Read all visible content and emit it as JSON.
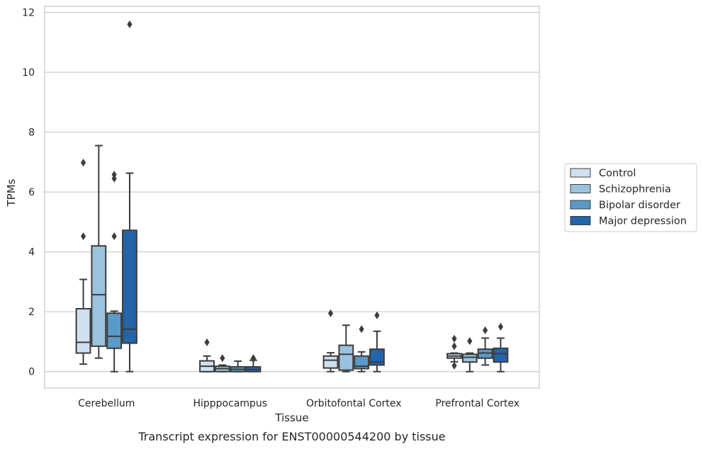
{
  "caption": "Transcript expression for ENST00000544200 by tissue",
  "chart_data": {
    "type": "box",
    "xlabel": "Tissue",
    "ylabel": "TPMs",
    "ylim": [
      -0.55,
      12.2
    ],
    "yticks": [
      0,
      2,
      4,
      6,
      8,
      10,
      12
    ],
    "grid": "horizontal",
    "legend_position": "right",
    "categories": [
      "Cerebellum",
      "Hipppocampus",
      "Orbitofontal Cortex",
      "Prefrontal Cortex"
    ],
    "series": [
      {
        "name": "Control",
        "color": "#cfe0f0",
        "boxes": [
          {
            "q1": 0.62,
            "median": 0.98,
            "q3": 2.1,
            "whisker_low": 0.25,
            "whisker_high": 3.08,
            "outliers": [
              4.52,
              6.98
            ]
          },
          {
            "q1": 0.0,
            "median": 0.18,
            "q3": 0.36,
            "whisker_low": 0.0,
            "whisker_high": 0.52,
            "outliers": [
              0.98
            ]
          },
          {
            "q1": 0.12,
            "median": 0.38,
            "q3": 0.52,
            "whisker_low": 0.0,
            "whisker_high": 0.63,
            "outliers": [
              1.95
            ]
          },
          {
            "q1": 0.45,
            "median": 0.52,
            "q3": 0.6,
            "whisker_low": 0.33,
            "whisker_high": 0.62,
            "outliers": [
              0.2,
              0.85,
              1.1
            ]
          }
        ]
      },
      {
        "name": "Schizophrenia",
        "color": "#9ac3dd",
        "boxes": [
          {
            "q1": 0.85,
            "median": 2.57,
            "q3": 4.2,
            "whisker_low": 0.45,
            "whisker_high": 7.55,
            "outliers": []
          },
          {
            "q1": 0.0,
            "median": 0.1,
            "q3": 0.18,
            "whisker_low": 0.0,
            "whisker_high": 0.22,
            "outliers": [
              0.45
            ]
          },
          {
            "q1": 0.05,
            "median": 0.58,
            "q3": 0.88,
            "whisker_low": 0.0,
            "whisker_high": 1.55,
            "outliers": []
          },
          {
            "q1": 0.32,
            "median": 0.48,
            "q3": 0.58,
            "whisker_low": 0.0,
            "whisker_high": 0.62,
            "outliers": [
              1.02
            ]
          }
        ]
      },
      {
        "name": "Bipolar disorder",
        "color": "#5a9ac8",
        "boxes": [
          {
            "q1": 0.78,
            "median": 1.18,
            "q3": 1.95,
            "whisker_low": 0.0,
            "whisker_high": 2.02,
            "outliers": [
              4.52,
              6.45,
              6.58
            ]
          },
          {
            "q1": 0.0,
            "median": 0.08,
            "q3": 0.16,
            "whisker_low": 0.0,
            "whisker_high": 0.35,
            "outliers": []
          },
          {
            "q1": 0.1,
            "median": 0.18,
            "q3": 0.52,
            "whisker_low": 0.0,
            "whisker_high": 0.66,
            "outliers": [
              1.42
            ]
          },
          {
            "q1": 0.45,
            "median": 0.62,
            "q3": 0.75,
            "whisker_low": 0.22,
            "whisker_high": 1.12,
            "outliers": [
              1.38
            ]
          }
        ]
      },
      {
        "name": "Major depression",
        "color": "#2464a8",
        "boxes": [
          {
            "q1": 0.95,
            "median": 1.42,
            "q3": 4.72,
            "whisker_low": 0.0,
            "whisker_high": 6.63,
            "outliers": [
              11.6
            ]
          },
          {
            "q1": 0.0,
            "median": 0.07,
            "q3": 0.16,
            "whisker_low": 0.0,
            "whisker_high": 0.38,
            "outliers": [
              0.42,
              0.45
            ]
          },
          {
            "q1": 0.22,
            "median": 0.32,
            "q3": 0.75,
            "whisker_low": 0.0,
            "whisker_high": 1.35,
            "outliers": [
              1.88
            ]
          },
          {
            "q1": 0.32,
            "median": 0.6,
            "q3": 0.78,
            "whisker_low": 0.0,
            "whisker_high": 1.12,
            "outliers": [
              1.5
            ]
          }
        ]
      }
    ]
  }
}
